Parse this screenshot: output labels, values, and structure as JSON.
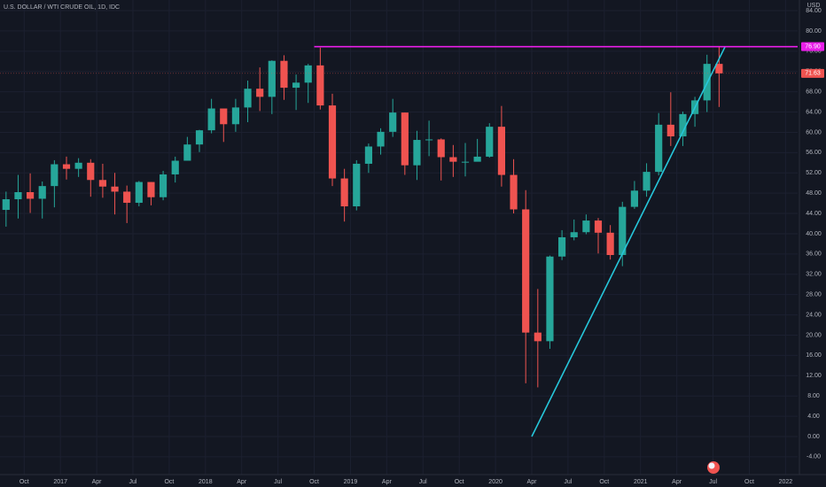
{
  "chart_data": {
    "type": "candlestick",
    "title": "U.S. DOLLAR / WTI CRUDE OIL, 1D, IDC",
    "y_axis_label": "USD",
    "x": [
      "2016-08",
      "2016-09",
      "2016-10",
      "2016-11",
      "2016-12",
      "2017-01",
      "2017-02",
      "2017-03",
      "2017-04",
      "2017-05",
      "2017-06",
      "2017-07",
      "2017-08",
      "2017-09",
      "2017-10",
      "2017-11",
      "2017-12",
      "2018-01",
      "2018-02",
      "2018-03",
      "2018-04",
      "2018-05",
      "2018-06",
      "2018-07",
      "2018-08",
      "2018-09",
      "2018-10",
      "2018-11",
      "2018-12",
      "2019-01",
      "2019-02",
      "2019-03",
      "2019-04",
      "2019-05",
      "2019-06",
      "2019-07",
      "2019-08",
      "2019-09",
      "2019-10",
      "2019-11",
      "2019-12",
      "2020-01",
      "2020-02",
      "2020-03",
      "2020-04",
      "2020-05",
      "2020-06",
      "2020-07",
      "2020-08",
      "2020-09",
      "2020-10",
      "2020-11",
      "2020-12",
      "2021-01",
      "2021-02",
      "2021-03",
      "2021-04",
      "2021-05",
      "2021-06",
      "2021-07"
    ],
    "open": [
      44.7,
      46.8,
      48.2,
      46.9,
      49.4,
      53.7,
      52.8,
      54.0,
      50.6,
      49.3,
      48.3,
      46.1,
      50.2,
      47.2,
      51.7,
      54.4,
      57.6,
      60.4,
      64.7,
      61.6,
      64.9,
      68.6,
      67.0,
      74.1,
      68.8,
      69.8,
      73.2,
      65.3,
      50.9,
      45.4,
      53.8,
      57.2,
      60.1,
      63.9,
      53.5,
      58.5,
      58.6,
      55.1,
      54.2,
      54.2,
      55.2,
      61.1,
      51.6,
      44.8,
      20.5,
      18.8,
      35.5,
      39.3,
      40.3,
      42.6,
      40.2,
      35.8,
      45.3,
      48.5,
      52.2,
      61.5,
      59.2,
      63.6,
      66.3,
      73.5
    ],
    "high": [
      48.3,
      51.6,
      51.9,
      50.3,
      54.5,
      55.2,
      54.9,
      54.7,
      53.8,
      52.0,
      49.5,
      50.4,
      50.2,
      52.4,
      55.2,
      59.1,
      60.5,
      66.6,
      64.2,
      66.6,
      70.2,
      72.8,
      74.2,
      75.2,
      71.4,
      73.5,
      76.7,
      67.6,
      52.8,
      54.5,
      57.8,
      60.8,
      66.6,
      63.9,
      60.3,
      62.3,
      58.8,
      57.5,
      57.9,
      58.7,
      61.8,
      65.2,
      54.7,
      48.6,
      29.1,
      35.7,
      40.7,
      42.8,
      43.8,
      43.1,
      41.7,
      46.3,
      50.4,
      53.9,
      63.8,
      67.9,
      64.1,
      67.0,
      75.3,
      76.9
    ],
    "low": [
      41.4,
      43.0,
      44.1,
      43.0,
      45.2,
      50.7,
      51.2,
      47.3,
      47.1,
      43.8,
      42.1,
      45.4,
      45.6,
      46.6,
      50.1,
      54.9,
      56.1,
      59.8,
      58.1,
      60.1,
      62.0,
      64.2,
      63.6,
      66.4,
      64.4,
      65.8,
      64.5,
      49.4,
      42.4,
      44.6,
      52.0,
      55.6,
      59.1,
      51.6,
      50.6,
      55.3,
      50.5,
      51.2,
      51.3,
      54.3,
      55.0,
      49.3,
      44.0,
      10.5,
      9.7,
      17.3,
      34.8,
      38.7,
      39.9,
      36.1,
      34.9,
      33.6,
      44.9,
      47.3,
      51.5,
      57.3,
      57.3,
      61.1,
      64.0,
      65.0
    ],
    "close": [
      46.8,
      48.2,
      46.9,
      49.4,
      53.7,
      52.8,
      54.0,
      50.6,
      49.3,
      48.3,
      46.1,
      50.2,
      47.2,
      51.7,
      54.4,
      57.6,
      60.4,
      64.7,
      61.6,
      64.9,
      68.6,
      67.0,
      74.1,
      68.8,
      69.8,
      73.2,
      65.3,
      50.9,
      45.4,
      53.8,
      57.2,
      60.1,
      63.9,
      53.5,
      58.5,
      58.6,
      55.1,
      54.2,
      54.2,
      55.2,
      61.1,
      51.6,
      44.8,
      20.5,
      18.8,
      35.5,
      39.3,
      40.3,
      42.6,
      40.2,
      35.8,
      45.3,
      48.5,
      52.2,
      61.5,
      59.2,
      63.6,
      66.3,
      73.5,
      71.63
    ],
    "up_color": "#26a69a",
    "down_color": "#ef5350",
    "xlim": [
      "2016-08",
      "2022-02"
    ],
    "xticks": [
      {
        "value": "2016-10",
        "label": "Oct"
      },
      {
        "value": "2017-01",
        "label": "2017"
      },
      {
        "value": "2017-04",
        "label": "Apr"
      },
      {
        "value": "2017-07",
        "label": "Jul"
      },
      {
        "value": "2017-10",
        "label": "Oct"
      },
      {
        "value": "2018-01",
        "label": "2018"
      },
      {
        "value": "2018-04",
        "label": "Apr"
      },
      {
        "value": "2018-07",
        "label": "Jul"
      },
      {
        "value": "2018-10",
        "label": "Oct"
      },
      {
        "value": "2019-01",
        "label": "2019"
      },
      {
        "value": "2019-04",
        "label": "Apr"
      },
      {
        "value": "2019-07",
        "label": "Jul"
      },
      {
        "value": "2019-10",
        "label": "Oct"
      },
      {
        "value": "2020-01",
        "label": "2020"
      },
      {
        "value": "2020-04",
        "label": "Apr"
      },
      {
        "value": "2020-07",
        "label": "Jul"
      },
      {
        "value": "2020-10",
        "label": "Oct"
      },
      {
        "value": "2021-01",
        "label": "2021"
      },
      {
        "value": "2021-04",
        "label": "Apr"
      },
      {
        "value": "2021-07",
        "label": "Jul"
      },
      {
        "value": "2021-10",
        "label": "Oct"
      },
      {
        "value": "2022-01",
        "label": "2022"
      }
    ],
    "ylim": [
      -6,
      86
    ],
    "yticks": [
      {
        "value": -4,
        "label": "-4.00"
      },
      {
        "value": 0,
        "label": "0.00"
      },
      {
        "value": 4,
        "label": "4.00"
      },
      {
        "value": 8,
        "label": "8.00"
      },
      {
        "value": 12,
        "label": "12.00"
      },
      {
        "value": 16,
        "label": "16.00"
      },
      {
        "value": 20,
        "label": "20.00"
      },
      {
        "value": 24,
        "label": "24.00"
      },
      {
        "value": 28,
        "label": "28.00"
      },
      {
        "value": 32,
        "label": "32.00"
      },
      {
        "value": 36,
        "label": "36.00"
      },
      {
        "value": 40,
        "label": "40.00"
      },
      {
        "value": 44,
        "label": "44.00"
      },
      {
        "value": 48,
        "label": "48.00"
      },
      {
        "value": 52,
        "label": "52.00"
      },
      {
        "value": 56,
        "label": "56.00"
      },
      {
        "value": 60,
        "label": "60.00"
      },
      {
        "value": 64,
        "label": "64.00"
      },
      {
        "value": 68,
        "label": "68.00"
      },
      {
        "value": 72,
        "label": "72.00"
      },
      {
        "value": 76,
        "label": "76.00"
      },
      {
        "value": 80,
        "label": "80.00"
      },
      {
        "value": 84,
        "label": "84.00"
      }
    ],
    "grid": true,
    "horizontal_line": {
      "value": 76.9,
      "label": "76.90",
      "start": "2018-10",
      "color": "#e91ee9"
    },
    "trendline": {
      "start": {
        "x": "2020-04",
        "y": 0
      },
      "end": {
        "x": "2021-08",
        "y": 76.9
      },
      "color": "#26c6da"
    }
  }
}
